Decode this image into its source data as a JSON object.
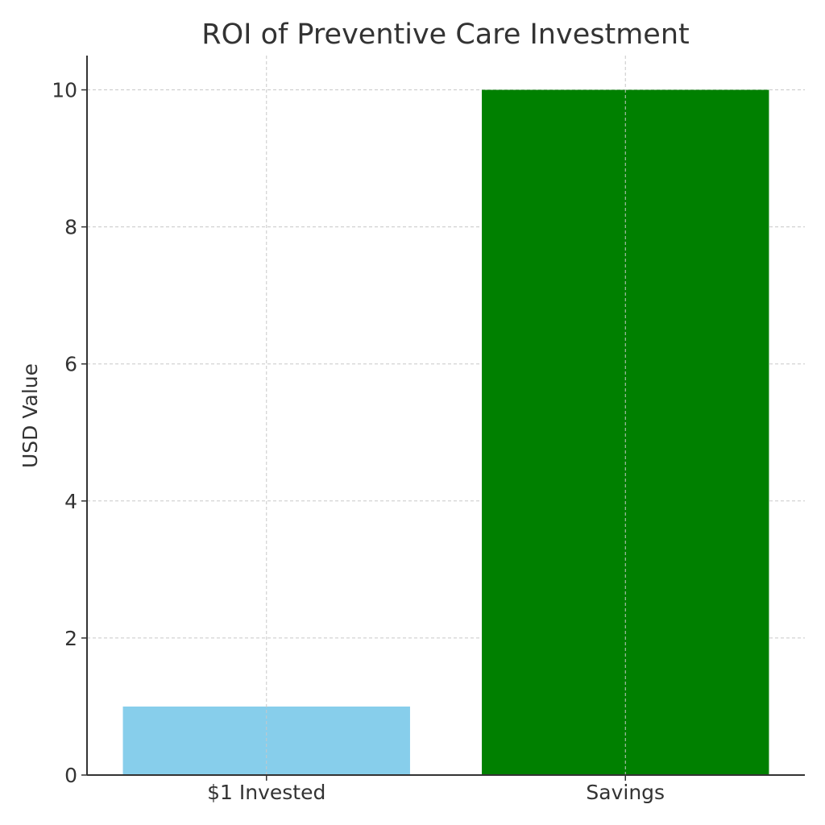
{
  "chart_data": {
    "type": "bar",
    "title": "ROI of Preventive Care Investment",
    "xlabel": "",
    "ylabel": "USD Value",
    "categories": [
      "$1 Invested",
      "Savings"
    ],
    "values": [
      1,
      10
    ],
    "colors": [
      "#87ceeb",
      "#008000"
    ],
    "ylim": [
      0,
      10.5
    ],
    "yticks": [
      0,
      2,
      4,
      6,
      8,
      10
    ],
    "grid": true
  }
}
